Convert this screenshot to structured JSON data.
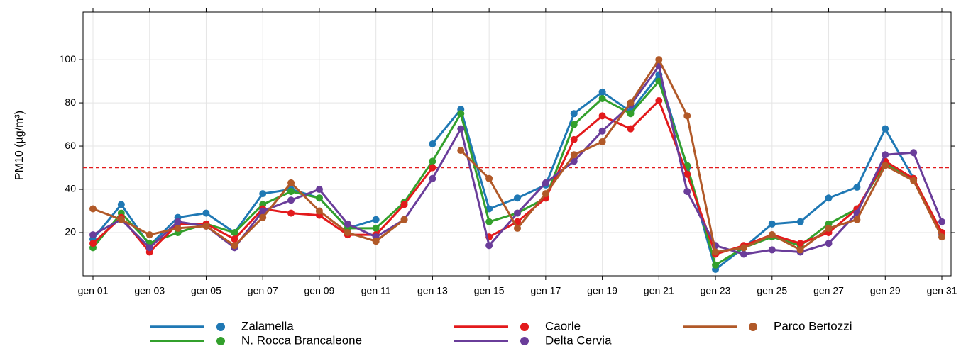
{
  "chart_data": {
    "type": "line",
    "y_label": "PM10 (µg/m³)",
    "categories": [
      "gen 01",
      null,
      "gen 03",
      null,
      "gen 05",
      null,
      "gen 07",
      null,
      "gen 09",
      null,
      "gen 11",
      null,
      "gen 13",
      null,
      "gen 15",
      null,
      "gen 17",
      null,
      "gen 19",
      null,
      "gen 21",
      null,
      "gen 23",
      null,
      "gen 25",
      null,
      "gen 27",
      null,
      "gen 29",
      null,
      "gen 31"
    ],
    "series": [
      {
        "name": "Zalamella",
        "color": "#1f78b4",
        "values": [
          17,
          33,
          14,
          27,
          29,
          20,
          38,
          40,
          36,
          22,
          26,
          null,
          61,
          77,
          31,
          36,
          42,
          75,
          85,
          76,
          93,
          50,
          3,
          13,
          24,
          25,
          36,
          41,
          68,
          45,
          19
        ]
      },
      {
        "name": "N. Rocca Brancaleone",
        "color": "#33a02c",
        "values": [
          13,
          29,
          15,
          20,
          24,
          20,
          33,
          39,
          36,
          22,
          22,
          34,
          53,
          75,
          25,
          29,
          36,
          70,
          82,
          75,
          90,
          51,
          5,
          13,
          18,
          14,
          24,
          31,
          52,
          45,
          20
        ]
      },
      {
        "name": "Caorle",
        "color": "#e31a1c",
        "values": [
          15,
          27,
          11,
          24,
          24,
          17,
          31,
          29,
          28,
          19,
          19,
          33,
          50,
          null,
          18,
          25,
          36,
          63,
          74,
          68,
          81,
          47,
          10,
          14,
          19,
          15,
          20,
          31,
          53,
          45,
          20
        ]
      },
      {
        "name": "Delta Cervia",
        "color": "#6a3d9a",
        "values": [
          19,
          26,
          13,
          25,
          23,
          13,
          30,
          35,
          40,
          24,
          18,
          26,
          45,
          68,
          14,
          29,
          43,
          53,
          67,
          79,
          97,
          39,
          14,
          10,
          12,
          11,
          15,
          29,
          56,
          57,
          25
        ]
      },
      {
        "name": "Parco Bertozzi",
        "color": "#b15928",
        "values": [
          31,
          26,
          19,
          22,
          23,
          14,
          27,
          43,
          30,
          20,
          16,
          26,
          null,
          58,
          45,
          22,
          38,
          56,
          62,
          80,
          100,
          74,
          11,
          13,
          19,
          12,
          22,
          26,
          51,
          44,
          18
        ]
      }
    ],
    "threshold": 50,
    "threshold_color": "#e31a1c",
    "ylim": [
      0,
      122
    ],
    "yticks": [
      20,
      40,
      60,
      80,
      100
    ],
    "grid": true
  }
}
